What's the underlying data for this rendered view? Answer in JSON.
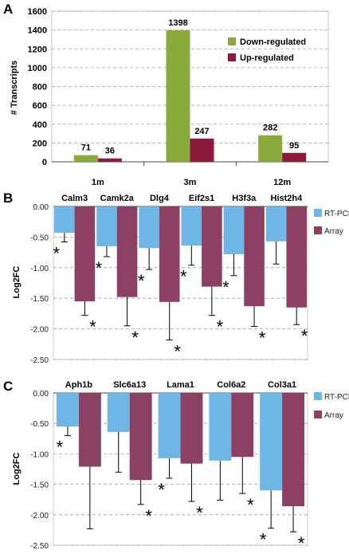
{
  "panels": [
    "A",
    "B",
    "C"
  ],
  "chart_data": [
    {
      "panel": "A",
      "type": "bar",
      "categories": [
        "1m",
        "3m",
        "12m"
      ],
      "series": [
        {
          "name": "Down-regulated",
          "values": [
            71,
            1398,
            282
          ],
          "color": "#8aaa3c"
        },
        {
          "name": "Up-regulated",
          "values": [
            36,
            247,
            95
          ],
          "color": "#8c1a3a"
        }
      ],
      "data_labels": [
        [
          "71",
          "1398",
          "282"
        ],
        [
          "36",
          "247",
          "95"
        ]
      ],
      "xlabel": "",
      "ylabel": "# Transcripts",
      "ylim": [
        0,
        1600
      ],
      "yticks": [
        0,
        200,
        400,
        600,
        800,
        1000,
        1200,
        1400,
        1600
      ],
      "grid": true,
      "legend_position": "right"
    },
    {
      "panel": "B",
      "type": "bar",
      "categories": [
        "Calm3",
        "Camk2a",
        "Dlg4",
        "Eif2s1",
        "H3f3a",
        "Hist2h4"
      ],
      "series": [
        {
          "name": "RT-PCR",
          "values": [
            -0.43,
            -0.65,
            -0.68,
            -0.64,
            -0.78,
            -0.57
          ],
          "errors": [
            0.15,
            0.17,
            0.35,
            0.32,
            0.35,
            0.37
          ],
          "significant": [
            true,
            true,
            true,
            true,
            true,
            false
          ],
          "color": "#6db6e6"
        },
        {
          "name": "Array",
          "values": [
            -1.55,
            -1.48,
            -1.56,
            -1.31,
            -1.63,
            -1.65
          ],
          "errors": [
            0.23,
            0.47,
            0.62,
            0.47,
            0.33,
            0.28
          ],
          "significant": [
            true,
            true,
            true,
            true,
            true,
            true
          ],
          "color": "#8b4064"
        }
      ],
      "ylabel": "Log2FC",
      "ylim": [
        -2.5,
        0
      ],
      "yticks": [
        0,
        -0.5,
        -1,
        -1.5,
        -2,
        -2.5
      ],
      "ytick_labels": [
        "0.00",
        "-0.50",
        "-1.00",
        "-1.50",
        "-2.00",
        "-2.50"
      ],
      "grid": true,
      "legend_position": "right",
      "significance_marker": "*"
    },
    {
      "panel": "C",
      "type": "bar",
      "categories": [
        "Aph1b",
        "Slc6a13",
        "Lama1",
        "Col6a2",
        "Col3a1"
      ],
      "series": [
        {
          "name": "RT-PCR",
          "values": [
            -0.55,
            -0.64,
            -1.07,
            -1.11,
            -1.6
          ],
          "errors": [
            0.15,
            0.66,
            0.33,
            0.65,
            0.62
          ],
          "significant": [
            true,
            false,
            true,
            false,
            true
          ],
          "color": "#6db6e6"
        },
        {
          "name": "Array",
          "values": [
            -1.21,
            -1.43,
            -1.16,
            -1.05,
            -1.86
          ],
          "errors": [
            1.02,
            0.4,
            0.62,
            0.6,
            0.42
          ],
          "significant": [
            false,
            true,
            true,
            true,
            true
          ],
          "color": "#8b4064"
        }
      ],
      "ylabel": "Log2FC",
      "ylim": [
        -2.5,
        0
      ],
      "yticks": [
        0,
        -0.5,
        -1,
        -1.5,
        -2,
        -2.5
      ],
      "ytick_labels": [
        "0.00",
        "-0.50",
        "-1.00",
        "-1.50",
        "-2.00",
        "-2.50"
      ],
      "grid": true,
      "legend_position": "right",
      "significance_marker": "*"
    }
  ]
}
